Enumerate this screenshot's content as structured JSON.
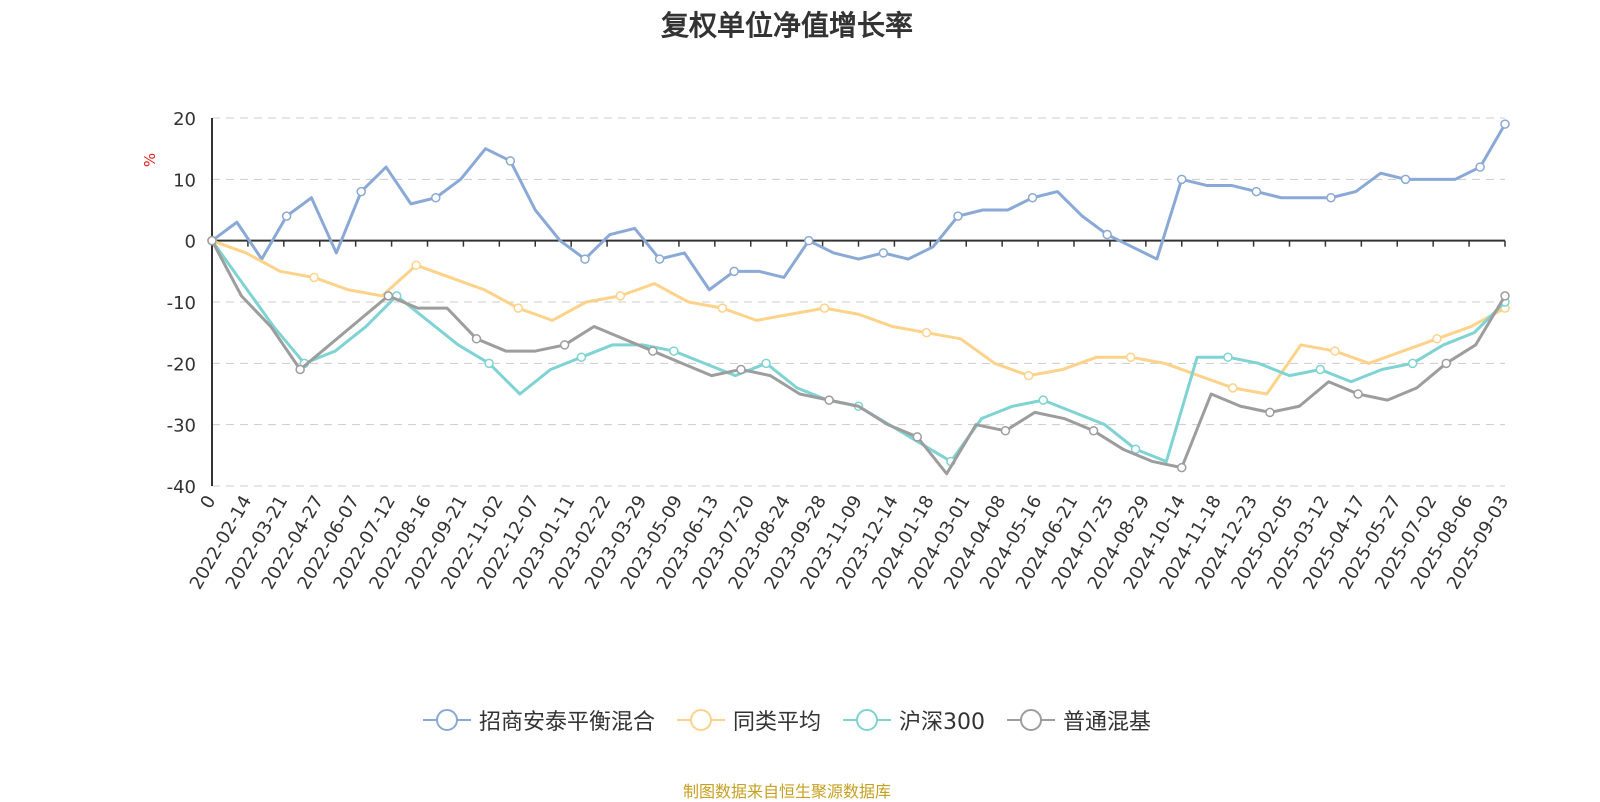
{
  "chart_data": {
    "type": "line",
    "title": "复权单位净值增长率",
    "ylabel": "%",
    "ylim": [
      -40,
      20
    ],
    "yticks": [
      20,
      10,
      0,
      -10,
      -20,
      -30,
      -40
    ],
    "grid": true,
    "legend_position": "bottom",
    "x_tick_labels": [
      "0",
      "2022-02-14",
      "2022-03-21",
      "2022-04-27",
      "2022-06-07",
      "2022-07-12",
      "2022-08-16",
      "2022-09-21",
      "2022-11-02",
      "2022-12-07",
      "2023-01-11",
      "2023-02-22",
      "2023-03-29",
      "2023-05-09",
      "2023-06-13",
      "2023-07-20",
      "2023-08-24",
      "2023-09-28",
      "2023-11-09",
      "2023-12-14",
      "2024-01-18",
      "2024-03-01",
      "2024-04-08",
      "2024-05-16",
      "2024-06-21",
      "2024-07-25",
      "2024-08-29",
      "2024-10-14",
      "2024-11-18",
      "2024-12-23",
      "2025-02-05",
      "2025-03-12",
      "2025-04-17",
      "2025-05-27",
      "2025-07-02",
      "2025-08-06",
      "2025-09-03"
    ],
    "series": [
      {
        "name": "招商安泰平衡混合",
        "color": "#8aa9d6",
        "values": [
          0,
          3,
          -3,
          4,
          7,
          -2,
          8,
          12,
          6,
          7,
          10,
          15,
          13,
          5,
          0,
          -3,
          1,
          2,
          -3,
          -2,
          -8,
          -5,
          -5,
          -6,
          0,
          -2,
          -3,
          -2,
          -3,
          -1,
          4,
          5,
          5,
          7,
          8,
          4,
          1,
          -1,
          -3,
          10,
          9,
          9,
          8,
          7,
          7,
          7,
          8,
          11,
          10,
          10,
          10,
          12,
          19
        ]
      },
      {
        "name": "同类平均",
        "color": "#fdd28a",
        "values": [
          0,
          -2,
          -5,
          -6,
          -8,
          -9,
          -4,
          -6,
          -8,
          -11,
          -13,
          -10,
          -9,
          -7,
          -10,
          -11,
          -13,
          -12,
          -11,
          -12,
          -14,
          -15,
          -16,
          -20,
          -22,
          -21,
          -19,
          -19,
          -20,
          -22,
          -24,
          -25,
          -17,
          -18,
          -20,
          -18,
          -16,
          -14,
          -11
        ]
      },
      {
        "name": "沪深300",
        "color": "#7fd3d3",
        "values": [
          0,
          -7,
          -14,
          -20,
          -18,
          -14,
          -9,
          -13,
          -17,
          -20,
          -25,
          -21,
          -19,
          -17,
          -17,
          -18,
          -20,
          -22,
          -20,
          -24,
          -26,
          -27,
          -30,
          -33,
          -36,
          -29,
          -27,
          -26,
          -28,
          -30,
          -34,
          -36,
          -19,
          -19,
          -20,
          -22,
          -21,
          -23,
          -21,
          -20,
          -17,
          -15,
          -10
        ]
      },
      {
        "name": "普通混基",
        "color": "#9d9d9d",
        "values": [
          0,
          -9,
          -14,
          -21,
          -17,
          -13,
          -9,
          -11,
          -11,
          -16,
          -18,
          -18,
          -17,
          -14,
          -16,
          -18,
          -20,
          -22,
          -21,
          -22,
          -25,
          -26,
          -27,
          -30,
          -32,
          -38,
          -30,
          -31,
          -28,
          -29,
          -31,
          -34,
          -36,
          -37,
          -25,
          -27,
          -28,
          -27,
          -23,
          -25,
          -26,
          -24,
          -20,
          -17,
          -9
        ]
      }
    ]
  },
  "source_note": "制图数据来自恒生聚源数据库"
}
